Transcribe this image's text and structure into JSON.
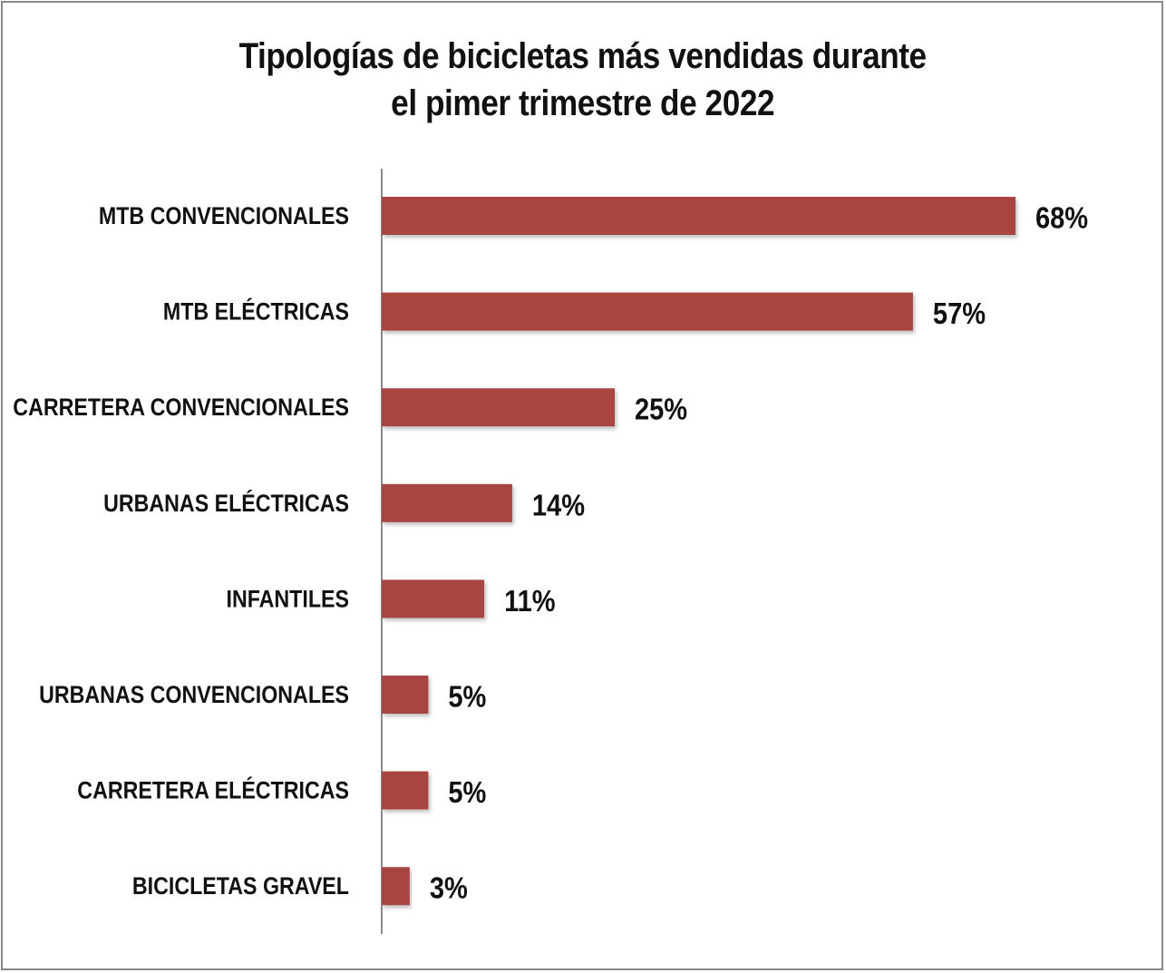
{
  "title": {
    "line1": "Tipologías de bicicletas más vendidas durante",
    "line2": "el pimer trimestre de 2022"
  },
  "colors": {
    "bar": "#a84440",
    "axis": "#8c8c8c",
    "border": "#8a8a8a",
    "text": "#111111"
  },
  "chart_data": {
    "type": "bar",
    "orientation": "horizontal",
    "title": "Tipologías de bicicletas más vendidas durante el pimer trimestre de 2022",
    "xlabel": "",
    "ylabel": "",
    "xlim": [
      0,
      68
    ],
    "grid": false,
    "legend": "none",
    "categories": [
      "MTB CONVENCIONALES",
      "MTB ELÉCTRICAS",
      "CARRETERA CONVENCIONALES",
      "URBANAS ELÉCTRICAS",
      "INFANTILES",
      "URBANAS CONVENCIONALES",
      "CARRETERA ELÉCTRICAS",
      "BICICLETAS GRAVEL"
    ],
    "values": [
      68,
      57,
      25,
      14,
      11,
      5,
      5,
      3
    ],
    "value_labels": [
      "68%",
      "57%",
      "25%",
      "14%",
      "11%",
      "5%",
      "5%",
      "3%"
    ]
  }
}
